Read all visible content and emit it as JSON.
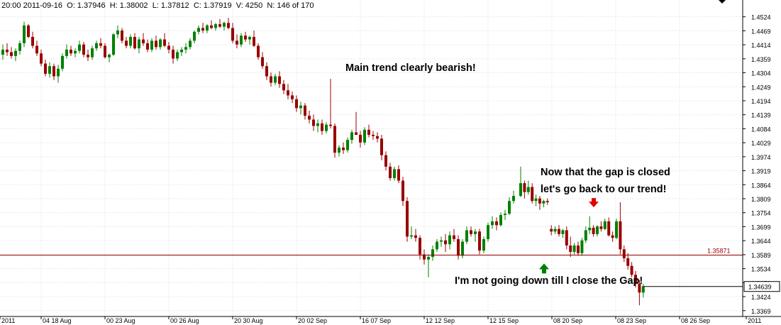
{
  "header": {
    "time": "20:00",
    "date": "2011-09-16",
    "open": "O: 1.37946",
    "high": "H: 1.38002",
    "low": "L: 1.37812",
    "close": "C: 1.37919",
    "volume": "V: 4250",
    "bar_count": "N: 146 of 170"
  },
  "chart_data": {
    "type": "candlestick",
    "title": "",
    "xlabel": "",
    "ylabel": "",
    "ylim": [
      1.3346,
      1.459
    ],
    "y_ticks": [
      "1.4524",
      "1.4469",
      "1.4414",
      "1.4359",
      "1.4304",
      "1.4249",
      "1.4194",
      "1.4139",
      "1.4084",
      "1.4029",
      "1.3974",
      "1.3919",
      "1.3864",
      "1.3809",
      "1.3754",
      "1.3699",
      "1.3644",
      "1.3589",
      "1.3534",
      "1.3479",
      "1.3424",
      "1.3369"
    ],
    "x_ticks": [
      "2011",
      "04 18 Aug",
      "00 23 Aug",
      "00 26 Aug",
      "20 30 Aug",
      "20 02 Sep",
      "16 07 Sep",
      "12 12 Sep",
      "12 15 Sep",
      "08 20 Sep",
      "08 23 Sep",
      "08 26 Sep",
      "2011"
    ],
    "grid": true,
    "up_color": "#008000",
    "down_color": "#990000",
    "horizontal_line": {
      "value": 1.35871,
      "label": "1.35871",
      "color": "#990000"
    },
    "current_price": {
      "value": 1.34639,
      "label": "1.34639"
    },
    "annotations": [
      {
        "text": "Main trend clearly bearish!",
        "price": 1.4327
      },
      {
        "text": "Now that the gap is closed",
        "price": 1.3905
      },
      {
        "text": "let's go back to our trend!",
        "price": 1.3853
      },
      {
        "text": "I'm not going down till I close the Gap!",
        "price": 1.3484
      }
    ],
    "arrows": [
      {
        "direction": "down",
        "color": "#e00000",
        "price": 1.3778
      },
      {
        "direction": "up",
        "color": "#008000",
        "price": 1.3532
      }
    ],
    "candles": [
      {
        "o": 1.4375,
        "h": 1.4415,
        "l": 1.4355,
        "c": 1.4395
      },
      {
        "o": 1.4395,
        "h": 1.442,
        "l": 1.437,
        "c": 1.4385
      },
      {
        "o": 1.4385,
        "h": 1.4405,
        "l": 1.436,
        "c": 1.437
      },
      {
        "o": 1.437,
        "h": 1.44,
        "l": 1.435,
        "c": 1.439
      },
      {
        "o": 1.439,
        "h": 1.443,
        "l": 1.4375,
        "c": 1.442
      },
      {
        "o": 1.442,
        "h": 1.4505,
        "l": 1.4405,
        "c": 1.449
      },
      {
        "o": 1.449,
        "h": 1.4495,
        "l": 1.444,
        "c": 1.4445
      },
      {
        "o": 1.4445,
        "h": 1.4465,
        "l": 1.44,
        "c": 1.441
      },
      {
        "o": 1.441,
        "h": 1.443,
        "l": 1.437,
        "c": 1.438
      },
      {
        "o": 1.438,
        "h": 1.4395,
        "l": 1.433,
        "c": 1.434
      },
      {
        "o": 1.434,
        "h": 1.4355,
        "l": 1.429,
        "c": 1.43
      },
      {
        "o": 1.43,
        "h": 1.4345,
        "l": 1.4285,
        "c": 1.433
      },
      {
        "o": 1.433,
        "h": 1.434,
        "l": 1.4275,
        "c": 1.429
      },
      {
        "o": 1.429,
        "h": 1.4335,
        "l": 1.4265,
        "c": 1.432
      },
      {
        "o": 1.432,
        "h": 1.438,
        "l": 1.431,
        "c": 1.437
      },
      {
        "o": 1.437,
        "h": 1.4415,
        "l": 1.436,
        "c": 1.4395
      },
      {
        "o": 1.4395,
        "h": 1.441,
        "l": 1.437,
        "c": 1.438
      },
      {
        "o": 1.438,
        "h": 1.44,
        "l": 1.4365,
        "c": 1.439
      },
      {
        "o": 1.439,
        "h": 1.443,
        "l": 1.438,
        "c": 1.4415
      },
      {
        "o": 1.4415,
        "h": 1.4425,
        "l": 1.4365,
        "c": 1.4375
      },
      {
        "o": 1.4375,
        "h": 1.4395,
        "l": 1.435,
        "c": 1.4365
      },
      {
        "o": 1.4365,
        "h": 1.441,
        "l": 1.4355,
        "c": 1.44
      },
      {
        "o": 1.44,
        "h": 1.443,
        "l": 1.439,
        "c": 1.442
      },
      {
        "o": 1.442,
        "h": 1.444,
        "l": 1.44,
        "c": 1.441
      },
      {
        "o": 1.441,
        "h": 1.442,
        "l": 1.436,
        "c": 1.4365
      },
      {
        "o": 1.4365,
        "h": 1.438,
        "l": 1.4345,
        "c": 1.4375
      },
      {
        "o": 1.4375,
        "h": 1.446,
        "l": 1.437,
        "c": 1.4455
      },
      {
        "o": 1.4455,
        "h": 1.449,
        "l": 1.444,
        "c": 1.447
      },
      {
        "o": 1.447,
        "h": 1.448,
        "l": 1.442,
        "c": 1.443
      },
      {
        "o": 1.443,
        "h": 1.4445,
        "l": 1.44,
        "c": 1.441
      },
      {
        "o": 1.441,
        "h": 1.4455,
        "l": 1.44,
        "c": 1.4445
      },
      {
        "o": 1.4445,
        "h": 1.446,
        "l": 1.4395,
        "c": 1.44
      },
      {
        "o": 1.44,
        "h": 1.4445,
        "l": 1.438,
        "c": 1.4435
      },
      {
        "o": 1.4435,
        "h": 1.446,
        "l": 1.441,
        "c": 1.442
      },
      {
        "o": 1.442,
        "h": 1.4435,
        "l": 1.4385,
        "c": 1.4395
      },
      {
        "o": 1.4395,
        "h": 1.444,
        "l": 1.4385,
        "c": 1.443
      },
      {
        "o": 1.443,
        "h": 1.445,
        "l": 1.4395,
        "c": 1.4405
      },
      {
        "o": 1.4405,
        "h": 1.444,
        "l": 1.4395,
        "c": 1.4435
      },
      {
        "o": 1.4435,
        "h": 1.446,
        "l": 1.4405,
        "c": 1.441
      },
      {
        "o": 1.441,
        "h": 1.4425,
        "l": 1.438,
        "c": 1.4395
      },
      {
        "o": 1.4395,
        "h": 1.441,
        "l": 1.434,
        "c": 1.436
      },
      {
        "o": 1.436,
        "h": 1.4395,
        "l": 1.435,
        "c": 1.4385
      },
      {
        "o": 1.4385,
        "h": 1.4405,
        "l": 1.437,
        "c": 1.4395
      },
      {
        "o": 1.4395,
        "h": 1.442,
        "l": 1.438,
        "c": 1.4405
      },
      {
        "o": 1.4405,
        "h": 1.444,
        "l": 1.4395,
        "c": 1.443
      },
      {
        "o": 1.443,
        "h": 1.447,
        "l": 1.442,
        "c": 1.4465
      },
      {
        "o": 1.4465,
        "h": 1.449,
        "l": 1.4455,
        "c": 1.448
      },
      {
        "o": 1.448,
        "h": 1.45,
        "l": 1.446,
        "c": 1.447
      },
      {
        "o": 1.447,
        "h": 1.4495,
        "l": 1.446,
        "c": 1.449
      },
      {
        "o": 1.449,
        "h": 1.451,
        "l": 1.4475,
        "c": 1.448
      },
      {
        "o": 1.448,
        "h": 1.45,
        "l": 1.447,
        "c": 1.4495
      },
      {
        "o": 1.4495,
        "h": 1.4515,
        "l": 1.448,
        "c": 1.4485
      },
      {
        "o": 1.4485,
        "h": 1.4505,
        "l": 1.447,
        "c": 1.45
      },
      {
        "o": 1.45,
        "h": 1.452,
        "l": 1.4475,
        "c": 1.448
      },
      {
        "o": 1.448,
        "h": 1.45,
        "l": 1.442,
        "c": 1.443
      },
      {
        "o": 1.443,
        "h": 1.4455,
        "l": 1.44,
        "c": 1.4415
      },
      {
        "o": 1.4415,
        "h": 1.446,
        "l": 1.4405,
        "c": 1.445
      },
      {
        "o": 1.445,
        "h": 1.4465,
        "l": 1.4425,
        "c": 1.4435
      },
      {
        "o": 1.4435,
        "h": 1.445,
        "l": 1.4415,
        "c": 1.4445
      },
      {
        "o": 1.4445,
        "h": 1.447,
        "l": 1.4405,
        "c": 1.441
      },
      {
        "o": 1.441,
        "h": 1.442,
        "l": 1.4355,
        "c": 1.4365
      },
      {
        "o": 1.4365,
        "h": 1.4385,
        "l": 1.432,
        "c": 1.433
      },
      {
        "o": 1.433,
        "h": 1.4345,
        "l": 1.4275,
        "c": 1.429
      },
      {
        "o": 1.429,
        "h": 1.4305,
        "l": 1.425,
        "c": 1.4265
      },
      {
        "o": 1.4265,
        "h": 1.43,
        "l": 1.4255,
        "c": 1.429
      },
      {
        "o": 1.429,
        "h": 1.431,
        "l": 1.4245,
        "c": 1.426
      },
      {
        "o": 1.426,
        "h": 1.4275,
        "l": 1.422,
        "c": 1.4235
      },
      {
        "o": 1.4235,
        "h": 1.426,
        "l": 1.42,
        "c": 1.4215
      },
      {
        "o": 1.4215,
        "h": 1.423,
        "l": 1.4185,
        "c": 1.42
      },
      {
        "o": 1.42,
        "h": 1.4215,
        "l": 1.415,
        "c": 1.4165
      },
      {
        "o": 1.4165,
        "h": 1.419,
        "l": 1.414,
        "c": 1.4175
      },
      {
        "o": 1.4175,
        "h": 1.4185,
        "l": 1.412,
        "c": 1.4135
      },
      {
        "o": 1.4135,
        "h": 1.4155,
        "l": 1.4105,
        "c": 1.412
      },
      {
        "o": 1.412,
        "h": 1.414,
        "l": 1.4075,
        "c": 1.4095
      },
      {
        "o": 1.4095,
        "h": 1.412,
        "l": 1.407,
        "c": 1.4105
      },
      {
        "o": 1.4105,
        "h": 1.412,
        "l": 1.406,
        "c": 1.4075
      },
      {
        "o": 1.4075,
        "h": 1.411,
        "l": 1.4065,
        "c": 1.41
      },
      {
        "o": 1.41,
        "h": 1.428,
        "l": 1.4085,
        "c": 1.4095
      },
      {
        "o": 1.4095,
        "h": 1.4105,
        "l": 1.397,
        "c": 1.399
      },
      {
        "o": 1.399,
        "h": 1.402,
        "l": 1.3975,
        "c": 1.401
      },
      {
        "o": 1.401,
        "h": 1.403,
        "l": 1.3985,
        "c": 1.4
      },
      {
        "o": 1.4,
        "h": 1.405,
        "l": 1.399,
        "c": 1.404
      },
      {
        "o": 1.404,
        "h": 1.408,
        "l": 1.4025,
        "c": 1.407
      },
      {
        "o": 1.407,
        "h": 1.415,
        "l": 1.406,
        "c": 1.406
      },
      {
        "o": 1.406,
        "h": 1.4075,
        "l": 1.401,
        "c": 1.403
      },
      {
        "o": 1.403,
        "h": 1.409,
        "l": 1.402,
        "c": 1.408
      },
      {
        "o": 1.408,
        "h": 1.41,
        "l": 1.405,
        "c": 1.406
      },
      {
        "o": 1.406,
        "h": 1.4075,
        "l": 1.404,
        "c": 1.4055
      },
      {
        "o": 1.4055,
        "h": 1.407,
        "l": 1.403,
        "c": 1.4045
      },
      {
        "o": 1.4045,
        "h": 1.406,
        "l": 1.396,
        "c": 1.398
      },
      {
        "o": 1.398,
        "h": 1.3995,
        "l": 1.392,
        "c": 1.3935
      },
      {
        "o": 1.3935,
        "h": 1.395,
        "l": 1.388,
        "c": 1.389
      },
      {
        "o": 1.389,
        "h": 1.3935,
        "l": 1.388,
        "c": 1.3925
      },
      {
        "o": 1.3925,
        "h": 1.394,
        "l": 1.387,
        "c": 1.388
      },
      {
        "o": 1.388,
        "h": 1.3895,
        "l": 1.378,
        "c": 1.38
      },
      {
        "o": 1.38,
        "h": 1.3815,
        "l": 1.364,
        "c": 1.366
      },
      {
        "o": 1.366,
        "h": 1.37,
        "l": 1.365,
        "c": 1.3665
      },
      {
        "o": 1.3665,
        "h": 1.369,
        "l": 1.364,
        "c": 1.3655
      },
      {
        "o": 1.3655,
        "h": 1.3665,
        "l": 1.357,
        "c": 1.359
      },
      {
        "o": 1.359,
        "h": 1.361,
        "l": 1.355,
        "c": 1.357
      },
      {
        "o": 1.357,
        "h": 1.359,
        "l": 1.35,
        "c": 1.358
      },
      {
        "o": 1.358,
        "h": 1.3625,
        "l": 1.3565,
        "c": 1.361
      },
      {
        "o": 1.361,
        "h": 1.365,
        "l": 1.36,
        "c": 1.364
      },
      {
        "o": 1.364,
        "h": 1.366,
        "l": 1.362,
        "c": 1.3645
      },
      {
        "o": 1.3645,
        "h": 1.367,
        "l": 1.36,
        "c": 1.363
      },
      {
        "o": 1.363,
        "h": 1.368,
        "l": 1.361,
        "c": 1.3665
      },
      {
        "o": 1.3665,
        "h": 1.369,
        "l": 1.364,
        "c": 1.365
      },
      {
        "o": 1.365,
        "h": 1.3665,
        "l": 1.357,
        "c": 1.3585
      },
      {
        "o": 1.3585,
        "h": 1.365,
        "l": 1.3575,
        "c": 1.364
      },
      {
        "o": 1.364,
        "h": 1.37,
        "l": 1.363,
        "c": 1.3685
      },
      {
        "o": 1.3685,
        "h": 1.37,
        "l": 1.366,
        "c": 1.367
      },
      {
        "o": 1.367,
        "h": 1.369,
        "l": 1.364,
        "c": 1.368
      },
      {
        "o": 1.368,
        "h": 1.369,
        "l": 1.359,
        "c": 1.3605
      },
      {
        "o": 1.3605,
        "h": 1.366,
        "l": 1.3595,
        "c": 1.365
      },
      {
        "o": 1.365,
        "h": 1.3715,
        "l": 1.364,
        "c": 1.3705
      },
      {
        "o": 1.3705,
        "h": 1.374,
        "l": 1.369,
        "c": 1.372
      },
      {
        "o": 1.372,
        "h": 1.3735,
        "l": 1.3685,
        "c": 1.3705
      },
      {
        "o": 1.3705,
        "h": 1.3755,
        "l": 1.37,
        "c": 1.3745
      },
      {
        "o": 1.3745,
        "h": 1.3765,
        "l": 1.3725,
        "c": 1.375
      },
      {
        "o": 1.375,
        "h": 1.3815,
        "l": 1.3745,
        "c": 1.38
      },
      {
        "o": 1.38,
        "h": 1.384,
        "l": 1.379,
        "c": 1.382
      },
      {
        "o": 1.382,
        "h": 1.3935,
        "l": 1.3815,
        "c": 1.387
      },
      {
        "o": 1.387,
        "h": 1.388,
        "l": 1.381,
        "c": 1.3835
      },
      {
        "o": 1.3835,
        "h": 1.388,
        "l": 1.3825,
        "c": 1.3855
      },
      {
        "o": 1.3855,
        "h": 1.387,
        "l": 1.379,
        "c": 1.38
      },
      {
        "o": 1.38,
        "h": 1.3825,
        "l": 1.378,
        "c": 1.381
      },
      {
        "o": 1.381,
        "h": 1.382,
        "l": 1.3765,
        "c": 1.379
      },
      {
        "o": 1.379,
        "h": 1.3805,
        "l": 1.3775,
        "c": 1.38
      },
      {
        "o": 1.38,
        "h": 1.381,
        "l": 1.3785,
        "c": 1.3795
      },
      {
        "o": 1.369,
        "h": 1.3705,
        "l": 1.3665,
        "c": 1.368
      },
      {
        "o": 1.368,
        "h": 1.37,
        "l": 1.367,
        "c": 1.369
      },
      {
        "o": 1.369,
        "h": 1.3705,
        "l": 1.366,
        "c": 1.367
      },
      {
        "o": 1.367,
        "h": 1.369,
        "l": 1.3655,
        "c": 1.3685
      },
      {
        "o": 1.3685,
        "h": 1.37,
        "l": 1.361,
        "c": 1.3625
      },
      {
        "o": 1.3625,
        "h": 1.366,
        "l": 1.358,
        "c": 1.36
      },
      {
        "o": 1.36,
        "h": 1.3635,
        "l": 1.359,
        "c": 1.3625
      },
      {
        "o": 1.3625,
        "h": 1.364,
        "l": 1.3585,
        "c": 1.3595
      },
      {
        "o": 1.3595,
        "h": 1.3655,
        "l": 1.3585,
        "c": 1.3645
      },
      {
        "o": 1.3645,
        "h": 1.37,
        "l": 1.3635,
        "c": 1.3685
      },
      {
        "o": 1.3685,
        "h": 1.374,
        "l": 1.367,
        "c": 1.3695
      },
      {
        "o": 1.3695,
        "h": 1.3705,
        "l": 1.366,
        "c": 1.367
      },
      {
        "o": 1.367,
        "h": 1.3705,
        "l": 1.366,
        "c": 1.37
      },
      {
        "o": 1.37,
        "h": 1.372,
        "l": 1.368,
        "c": 1.369
      },
      {
        "o": 1.369,
        "h": 1.373,
        "l": 1.3685,
        "c": 1.372
      },
      {
        "o": 1.372,
        "h": 1.3735,
        "l": 1.366,
        "c": 1.3665
      },
      {
        "o": 1.3665,
        "h": 1.368,
        "l": 1.364,
        "c": 1.3655
      },
      {
        "o": 1.3655,
        "h": 1.373,
        "l": 1.365,
        "c": 1.372
      },
      {
        "o": 1.372,
        "h": 1.3795,
        "l": 1.359,
        "c": 1.361
      },
      {
        "o": 1.361,
        "h": 1.3625,
        "l": 1.356,
        "c": 1.3575
      },
      {
        "o": 1.3575,
        "h": 1.3595,
        "l": 1.353,
        "c": 1.3545
      },
      {
        "o": 1.3545,
        "h": 1.356,
        "l": 1.35,
        "c": 1.351
      },
      {
        "o": 1.351,
        "h": 1.3525,
        "l": 1.346,
        "c": 1.3475
      },
      {
        "o": 1.3475,
        "h": 1.349,
        "l": 1.339,
        "c": 1.344
      },
      {
        "o": 1.344,
        "h": 1.3475,
        "l": 1.342,
        "c": 1.3465
      }
    ]
  }
}
